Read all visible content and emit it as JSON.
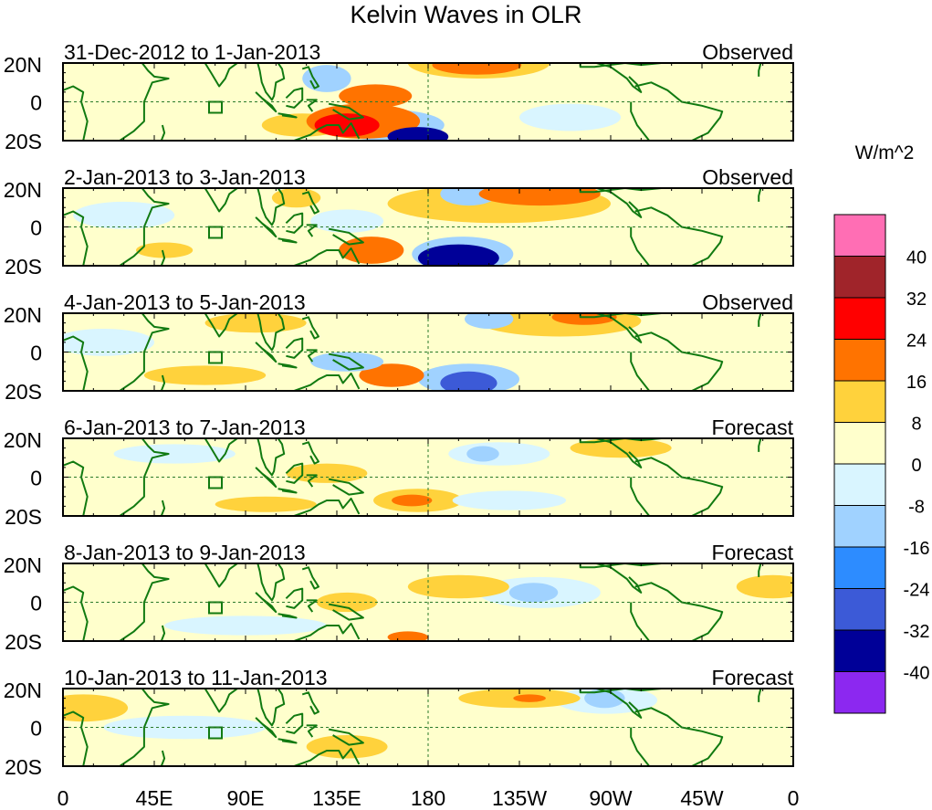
{
  "title": "Kelvin Waves in OLR",
  "units": "W/m^2",
  "lat_labels": [
    "20N",
    "0",
    "20S"
  ],
  "lon_labels": [
    "0",
    "45E",
    "90E",
    "135E",
    "180",
    "135W",
    "90W",
    "45W",
    "0"
  ],
  "colorbar": {
    "labels": [
      "40",
      "32",
      "24",
      "16",
      "8",
      "0",
      "-8",
      "-16",
      "-24",
      "-32",
      "-40"
    ],
    "colors": [
      "#ff6eb4",
      "#a0242a",
      "#ff0000",
      "#ff7300",
      "#ffd23c",
      "#ffffcc",
      "#d9f5ff",
      "#a0d2ff",
      "#2d8cff",
      "#3c5ad7",
      "#000098",
      "#8c28f0"
    ]
  },
  "map_colors": {
    "land": "#117a11",
    "dash": "#2a7a2a"
  },
  "panels": [
    {
      "date": "31-Dec-2012 to 1-Jan-2013",
      "status": "Observed"
    },
    {
      "date": "2-Jan-2013 to 3-Jan-2013",
      "status": "Observed"
    },
    {
      "date": "4-Jan-2013 to 5-Jan-2013",
      "status": "Observed"
    },
    {
      "date": "6-Jan-2013 to 7-Jan-2013",
      "status": "Forecast"
    },
    {
      "date": "8-Jan-2013 to 9-Jan-2013",
      "status": "Forecast"
    },
    {
      "date": "10-Jan-2013 to 11-Jan-2013",
      "status": "Forecast"
    }
  ],
  "anomalies": [
    [
      {
        "lon": 175,
        "lat": -18,
        "rx": 15,
        "ry": 5,
        "v": -40
      },
      {
        "lon": 160,
        "lat": -12,
        "rx": 28,
        "ry": 8,
        "v": -16
      },
      {
        "lon": 140,
        "lat": -12,
        "rx": 16,
        "ry": 6,
        "v": 24
      },
      {
        "lon": 148,
        "lat": -10,
        "rx": 28,
        "ry": 9,
        "v": 16
      },
      {
        "lon": 205,
        "lat": 20,
        "rx": 35,
        "ry": 8,
        "v": 8
      },
      {
        "lon": 204,
        "lat": 19,
        "rx": 22,
        "ry": 5,
        "v": 16
      },
      {
        "lon": 154,
        "lat": 3,
        "rx": 18,
        "ry": 6,
        "v": 16
      },
      {
        "lon": 130,
        "lat": 12,
        "rx": 12,
        "ry": 7,
        "v": -16
      },
      {
        "lon": 118,
        "lat": -12,
        "rx": 20,
        "ry": 6,
        "v": 8
      },
      {
        "lon": 250,
        "lat": -8,
        "rx": 25,
        "ry": 7,
        "v": -8
      }
    ],
    [
      {
        "lon": 195,
        "lat": -16,
        "rx": 20,
        "ry": 7,
        "v": -40
      },
      {
        "lon": 197,
        "lat": -14,
        "rx": 25,
        "ry": 9,
        "v": -16
      },
      {
        "lon": 152,
        "lat": -12,
        "rx": 16,
        "ry": 7,
        "v": 16
      },
      {
        "lon": 200,
        "lat": 17,
        "rx": 14,
        "ry": 6,
        "v": -16
      },
      {
        "lon": 235,
        "lat": 17,
        "rx": 30,
        "ry": 6,
        "v": 16
      },
      {
        "lon": 215,
        "lat": 12,
        "rx": 55,
        "ry": 10,
        "v": 8
      },
      {
        "lon": 115,
        "lat": 15,
        "rx": 12,
        "ry": 5,
        "v": 8
      },
      {
        "lon": 50,
        "lat": -12,
        "rx": 14,
        "ry": 4,
        "v": 8
      },
      {
        "lon": 30,
        "lat": 6,
        "rx": 25,
        "ry": 7,
        "v": -8
      },
      {
        "lon": 140,
        "lat": 3,
        "rx": 18,
        "ry": 6,
        "v": -8
      }
    ],
    [
      {
        "lon": 200,
        "lat": -16,
        "rx": 14,
        "ry": 6,
        "v": -32
      },
      {
        "lon": 200,
        "lat": -14,
        "rx": 25,
        "ry": 8,
        "v": -16
      },
      {
        "lon": 162,
        "lat": -12,
        "rx": 16,
        "ry": 6,
        "v": 16
      },
      {
        "lon": 210,
        "lat": 17,
        "rx": 12,
        "ry": 5,
        "v": -16
      },
      {
        "lon": 257,
        "lat": 18,
        "rx": 16,
        "ry": 4,
        "v": 16
      },
      {
        "lon": 245,
        "lat": 16,
        "rx": 40,
        "ry": 8,
        "v": 8
      },
      {
        "lon": 140,
        "lat": -5,
        "rx": 18,
        "ry": 5,
        "v": -16
      },
      {
        "lon": 70,
        "lat": -12,
        "rx": 30,
        "ry": 5,
        "v": 8
      },
      {
        "lon": 95,
        "lat": 15,
        "rx": 25,
        "ry": 5,
        "v": 8
      },
      {
        "lon": 20,
        "lat": 5,
        "rx": 25,
        "ry": 7,
        "v": -8
      }
    ],
    [
      {
        "lon": 207,
        "lat": 12,
        "rx": 8,
        "ry": 4,
        "v": -16
      },
      {
        "lon": 215,
        "lat": 12,
        "rx": 25,
        "ry": 6,
        "v": -8
      },
      {
        "lon": 175,
        "lat": -12,
        "rx": 22,
        "ry": 6,
        "v": 8
      },
      {
        "lon": 172,
        "lat": -12,
        "rx": 10,
        "ry": 3,
        "v": 16
      },
      {
        "lon": 220,
        "lat": -12,
        "rx": 28,
        "ry": 5,
        "v": -8
      },
      {
        "lon": 275,
        "lat": 15,
        "rx": 25,
        "ry": 5,
        "v": 8
      },
      {
        "lon": 130,
        "lat": 2,
        "rx": 20,
        "ry": 5,
        "v": 8
      },
      {
        "lon": 55,
        "lat": 12,
        "rx": 30,
        "ry": 5,
        "v": -8
      },
      {
        "lon": 100,
        "lat": -14,
        "rx": 25,
        "ry": 4,
        "v": 8
      }
    ],
    [
      {
        "lon": 232,
        "lat": 5,
        "rx": 12,
        "ry": 5,
        "v": -16
      },
      {
        "lon": 235,
        "lat": 5,
        "rx": 30,
        "ry": 8,
        "v": -8
      },
      {
        "lon": 195,
        "lat": 8,
        "rx": 25,
        "ry": 6,
        "v": 8
      },
      {
        "lon": 140,
        "lat": 0,
        "rx": 15,
        "ry": 5,
        "v": 8
      },
      {
        "lon": 350,
        "lat": 8,
        "rx": 18,
        "ry": 6,
        "v": 8
      },
      {
        "lon": 170,
        "lat": -18,
        "rx": 10,
        "ry": 3,
        "v": 16
      },
      {
        "lon": 90,
        "lat": -12,
        "rx": 40,
        "ry": 5,
        "v": -8
      }
    ],
    [
      {
        "lon": 267,
        "lat": 15,
        "rx": 10,
        "ry": 5,
        "v": -16
      },
      {
        "lon": 268,
        "lat": 14,
        "rx": 25,
        "ry": 7,
        "v": -8
      },
      {
        "lon": 225,
        "lat": 15,
        "rx": 30,
        "ry": 5,
        "v": 8
      },
      {
        "lon": 230,
        "lat": 15,
        "rx": 8,
        "ry": 2,
        "v": 16
      },
      {
        "lon": 10,
        "lat": 10,
        "rx": 22,
        "ry": 7,
        "v": 8
      },
      {
        "lon": 140,
        "lat": -10,
        "rx": 20,
        "ry": 6,
        "v": 8
      },
      {
        "lon": 60,
        "lat": 0,
        "rx": 40,
        "ry": 6,
        "v": -8
      }
    ]
  ]
}
